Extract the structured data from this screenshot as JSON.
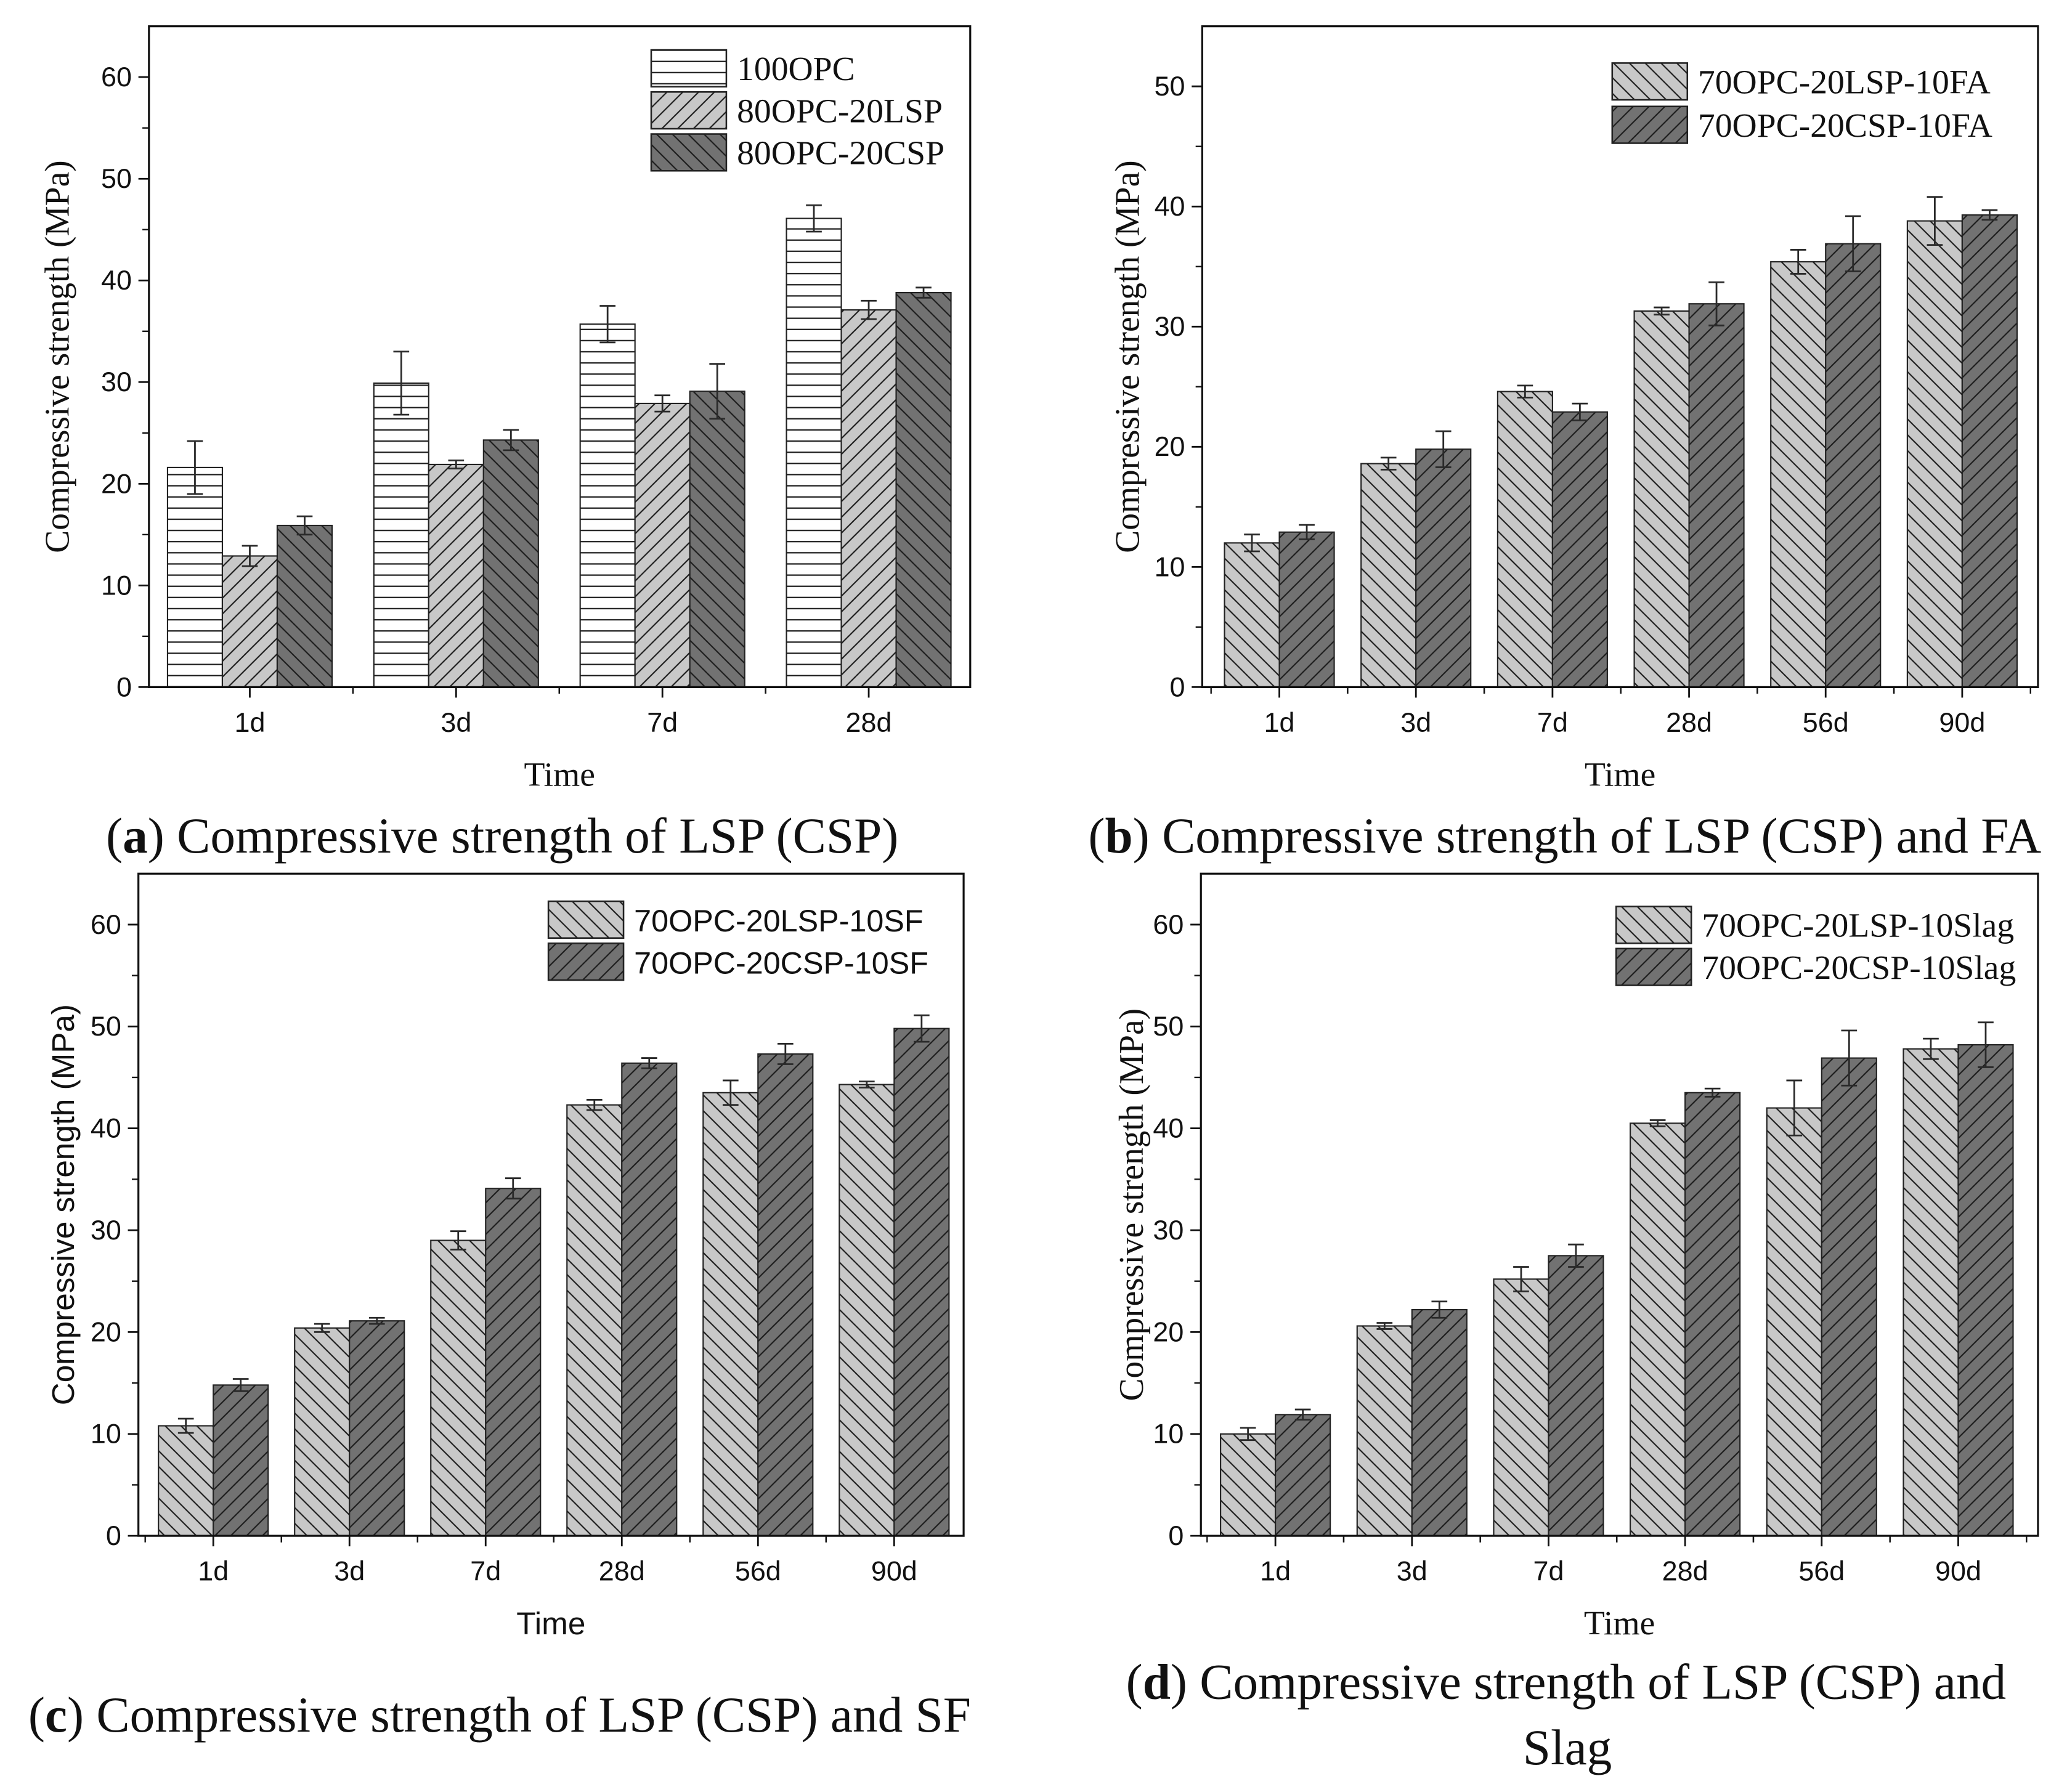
{
  "chart_data": [
    {
      "type": "bar",
      "caption": {
        "before": "(",
        "label": "a",
        "after": ") Compressive strength of LSP (CSP)"
      },
      "xlabel": "Time",
      "ylabel": "Compressive strength (MPa)",
      "ylim": [
        0,
        65
      ],
      "yticks": [
        0,
        10,
        20,
        30,
        40,
        50,
        60
      ],
      "grid": false,
      "legend": "top-right",
      "categories": [
        "1d",
        "3d",
        "7d",
        "28d"
      ],
      "series": [
        {
          "name": "100OPC",
          "color": "#ffffff",
          "values": [
            21.6,
            29.9,
            35.7,
            46.1
          ],
          "errors": [
            2.6,
            3.1,
            1.8,
            1.3
          ]
        },
        {
          "name": "80OPC-20LSP",
          "color": "#c8c8c8",
          "values": [
            12.9,
            21.9,
            27.9,
            37.1
          ],
          "errors": [
            1.0,
            0.4,
            0.8,
            0.9
          ]
        },
        {
          "name": "80OPC-20CSP",
          "color": "#727272",
          "values": [
            15.9,
            24.3,
            29.1,
            38.8
          ],
          "errors": [
            0.9,
            1.0,
            2.7,
            0.5
          ]
        }
      ]
    },
    {
      "type": "bar",
      "caption": {
        "before": "(",
        "label": "b",
        "after": ") Compressive strength of LSP (CSP) and FA"
      },
      "xlabel": "Time",
      "ylabel": "Compressive strength (MPa)",
      "ylim": [
        0,
        55
      ],
      "yticks": [
        0,
        10,
        20,
        30,
        40,
        50
      ],
      "grid": false,
      "legend": "top-right",
      "categories": [
        "1d",
        "3d",
        "7d",
        "28d",
        "56d",
        "90d"
      ],
      "series": [
        {
          "name": "70OPC-20LSP-10FA",
          "color": "#c8c8c8",
          "values": [
            12.0,
            18.6,
            24.6,
            31.3,
            35.4,
            38.8
          ],
          "errors": [
            0.7,
            0.5,
            0.5,
            0.3,
            1.0,
            2.0
          ]
        },
        {
          "name": "70OPC-20CSP-10FA",
          "color": "#727272",
          "values": [
            12.9,
            19.8,
            22.9,
            31.9,
            36.9,
            39.3
          ],
          "errors": [
            0.6,
            1.5,
            0.7,
            1.8,
            2.3,
            0.4
          ]
        }
      ]
    },
    {
      "type": "bar",
      "caption": {
        "before": "(",
        "label": "c",
        "after": ") Compressive strength of LSP (CSP) and SF"
      },
      "xlabel": "Time",
      "ylabel": "Compressive strength (MPa)",
      "ylim": [
        0,
        65
      ],
      "yticks": [
        0,
        10,
        20,
        30,
        40,
        50,
        60
      ],
      "grid": false,
      "legend": "top-right",
      "categories": [
        "1d",
        "3d",
        "7d",
        "28d",
        "56d",
        "90d"
      ],
      "series": [
        {
          "name": "70OPC-20LSP-10SF",
          "color": "#c8c8c8",
          "values": [
            10.8,
            20.4,
            29.0,
            42.3,
            43.5,
            44.3
          ],
          "errors": [
            0.7,
            0.4,
            0.9,
            0.5,
            1.2,
            0.3
          ]
        },
        {
          "name": "70OPC-20CSP-10SF",
          "color": "#727272",
          "values": [
            14.8,
            21.1,
            34.1,
            46.4,
            47.3,
            49.8
          ],
          "errors": [
            0.6,
            0.3,
            1.0,
            0.5,
            1.0,
            1.3
          ]
        }
      ]
    },
    {
      "type": "bar",
      "caption": {
        "before": "(",
        "label": "d",
        "after": ") Compressive strength of LSP (CSP) and",
        "line2": "Slag"
      },
      "xlabel": "Time",
      "ylabel": "Compressive strength (MPa)",
      "ylim": [
        0,
        65
      ],
      "yticks": [
        0,
        10,
        20,
        30,
        40,
        50,
        60
      ],
      "grid": false,
      "legend": "top-right",
      "categories": [
        "1d",
        "3d",
        "7d",
        "28d",
        "56d",
        "90d"
      ],
      "series": [
        {
          "name": "70OPC-20LSP-10Slag",
          "color": "#c8c8c8",
          "values": [
            10.0,
            20.6,
            25.2,
            40.5,
            42.0,
            47.8
          ],
          "errors": [
            0.6,
            0.3,
            1.2,
            0.3,
            2.7,
            1.0
          ]
        },
        {
          "name": "70OPC-20CSP-10Slag",
          "color": "#727272",
          "values": [
            11.9,
            22.2,
            27.5,
            43.5,
            46.9,
            48.2
          ],
          "errors": [
            0.5,
            0.8,
            1.1,
            0.4,
            2.7,
            2.2
          ]
        }
      ]
    }
  ]
}
